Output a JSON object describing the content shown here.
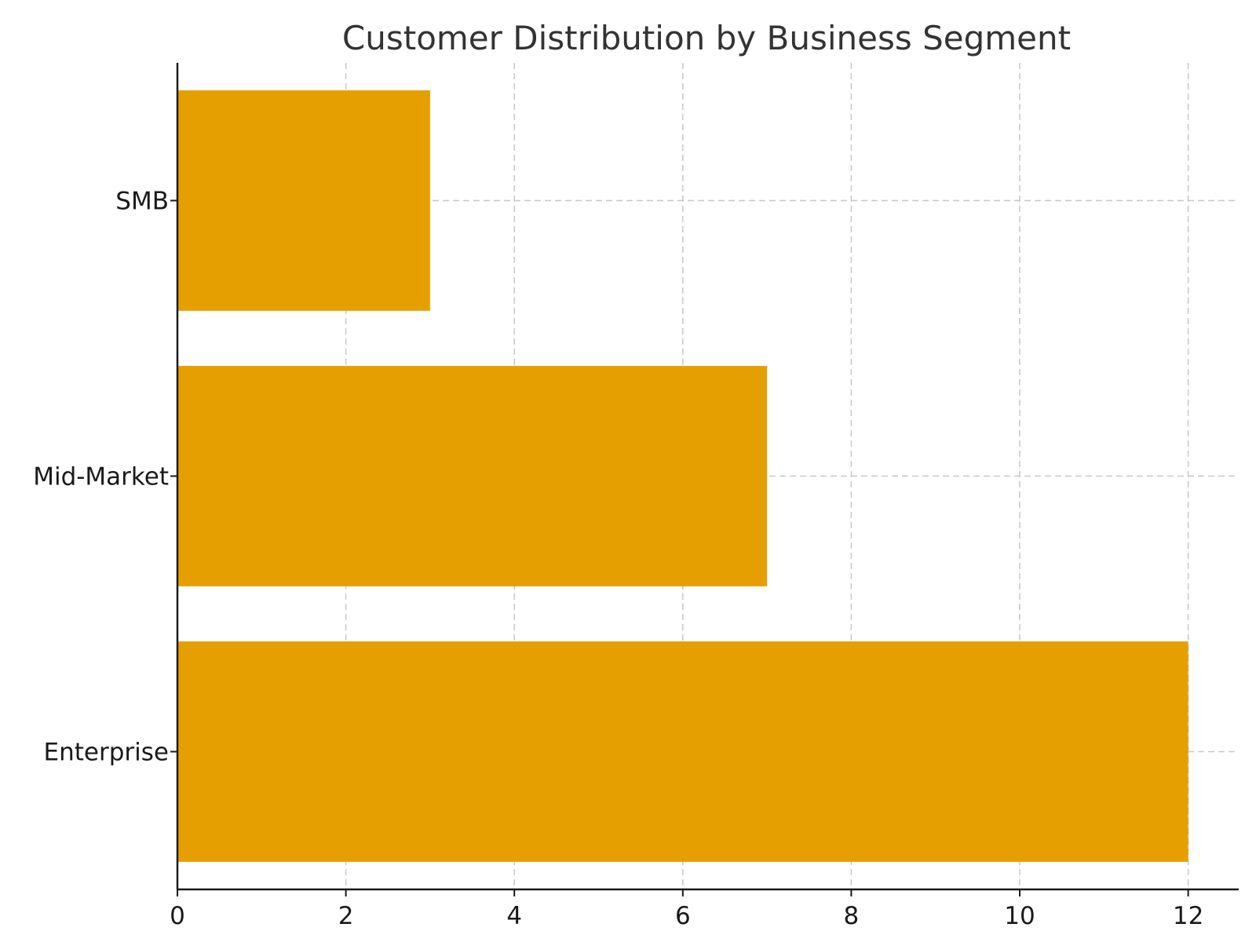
{
  "chart_data": {
    "type": "bar",
    "orientation": "horizontal",
    "title": "Customer Distribution by Business Segment",
    "xlabel": "",
    "ylabel": "",
    "categories": [
      "Enterprise",
      "Mid-Market",
      "SMB"
    ],
    "values": [
      12,
      7,
      3
    ],
    "xlim": [
      0,
      12.6
    ],
    "xticks": [
      0,
      2,
      4,
      6,
      8,
      10,
      12
    ],
    "grid": true,
    "bar_color": "#E69F00"
  }
}
